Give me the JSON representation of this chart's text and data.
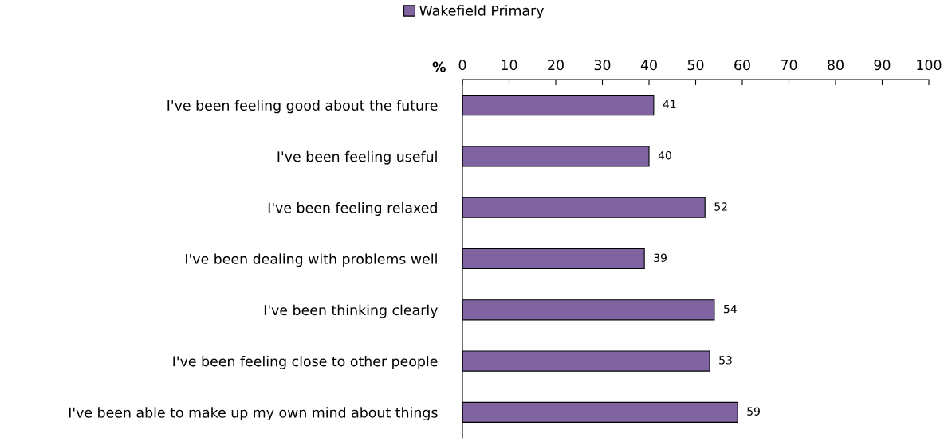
{
  "chart_data": {
    "type": "bar",
    "orientation": "horizontal",
    "xlabel": "%",
    "categories": [
      "I've been feeling good about the future",
      "I've been feeling useful",
      "I've been feeling relaxed",
      "I've been dealing with problems well",
      "I've been thinking clearly",
      "I've been feeling close to other people",
      "I've been able to make up my own mind about things"
    ],
    "series": [
      {
        "name": "Wakefield Primary",
        "color": "#8064a2",
        "values": [
          41,
          40,
          52,
          39,
          54,
          53,
          59
        ]
      }
    ],
    "xlim": [
      0,
      100
    ],
    "xticks": [
      0,
      10,
      20,
      30,
      40,
      50,
      60,
      70,
      80,
      90,
      100
    ],
    "data_labels": true,
    "legend": "top",
    "grid": false
  }
}
